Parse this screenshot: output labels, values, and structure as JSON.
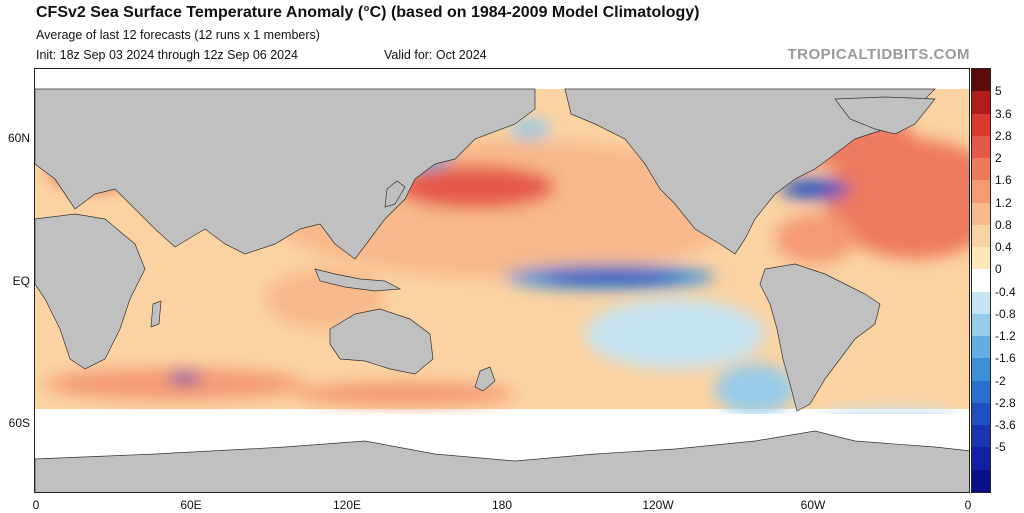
{
  "header": {
    "title": "CFSv2 Sea Surface Temperature Anomaly (°C) (based on 1984-2009 Model Climatology)",
    "subtitle": "Average of last 12 forecasts (12 runs x 1 members)",
    "init": "Init: 18z Sep 03 2024 through 12z Sep 06 2024",
    "valid": "Valid for: Oct 2024",
    "credit": "TROPICALTIDBITS.COM"
  },
  "map": {
    "lat_labels": [
      "60N",
      "EQ",
      "60S"
    ],
    "lon_labels": [
      "0",
      "60E",
      "120E",
      "180",
      "120W",
      "60W",
      "0"
    ],
    "land_color": "#c0c0c0",
    "ocean_nodata_color": "#ffffff"
  },
  "colorbar": {
    "labels": [
      "5",
      "3.6",
      "2.8",
      "2",
      "1.6",
      "1.2",
      "0.8",
      "0.4",
      "0",
      "-0.4",
      "-0.8",
      "-1.2",
      "-1.6",
      "-2",
      "-2.8",
      "-3.6",
      "-5"
    ],
    "colors": [
      "#5c0a0a",
      "#b01d1d",
      "#d83a2f",
      "#e5594a",
      "#ee7a5e",
      "#f49a74",
      "#f8b98c",
      "#fbd3a2",
      "#fde7b6",
      "#ffffff",
      "#c6e4f3",
      "#96cbe9",
      "#64aee0",
      "#3d8fd8",
      "#2a6fcf",
      "#2250c0",
      "#1b35b0",
      "#1120a0",
      "#0a0f8a"
    ]
  }
}
